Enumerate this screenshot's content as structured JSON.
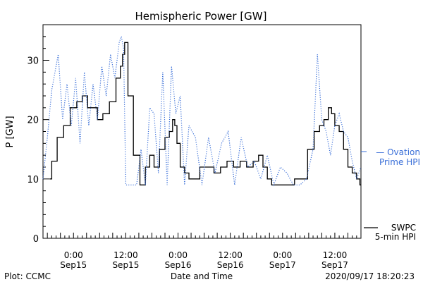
{
  "chart_data": {
    "type": "line",
    "title": "Hemispheric Power [GW]",
    "ylabel": "P [GW]",
    "xlabel": "Date and Time",
    "ylim": [
      0,
      36
    ],
    "yticks": [
      0,
      10,
      20,
      30
    ],
    "xlim": [
      "2020-09-14T17:00",
      "2020-09-17T18:00"
    ],
    "xticks": [
      {
        "t": "2020-09-15T00:00",
        "line1": "0:00",
        "line2": "Sep15"
      },
      {
        "t": "2020-09-15T12:00",
        "line1": "12:00",
        "line2": "Sep15"
      },
      {
        "t": "2020-09-16T00:00",
        "line1": "0:00",
        "line2": "Sep16"
      },
      {
        "t": "2020-09-16T12:00",
        "line1": "12:00",
        "line2": "Sep16"
      },
      {
        "t": "2020-09-17T00:00",
        "line1": "0:00",
        "line2": "Sep17"
      },
      {
        "t": "2020-09-17T12:00",
        "line1": "12:00",
        "line2": "Sep17"
      }
    ],
    "series": [
      {
        "name": "SWPC 5-min HPI",
        "color": "#000000",
        "style": "solid",
        "x": [
          "2020-09-14T18:30",
          "2020-09-14T19:30",
          "2020-09-14T21:00",
          "2020-09-14T22:30",
          "2020-09-15T00:00",
          "2020-09-15T01:30",
          "2020-09-15T02:30",
          "2020-09-15T04:00",
          "2020-09-15T05:00",
          "2020-09-15T06:00",
          "2020-09-15T07:30",
          "2020-09-15T09:00",
          "2020-09-15T10:30",
          "2020-09-15T11:00",
          "2020-09-15T11:30",
          "2020-09-15T12:00",
          "2020-09-15T13:00",
          "2020-09-15T14:30",
          "2020-09-15T16:00",
          "2020-09-15T17:00",
          "2020-09-15T18:00",
          "2020-09-15T19:00",
          "2020-09-15T20:30",
          "2020-09-15T21:30",
          "2020-09-15T22:30",
          "2020-09-15T23:00",
          "2020-09-15T23:30",
          "2020-09-16T00:00",
          "2020-09-16T01:00",
          "2020-09-16T02:00",
          "2020-09-16T03:00",
          "2020-09-16T04:00",
          "2020-09-16T06:00",
          "2020-09-16T07:30",
          "2020-09-16T09:00",
          "2020-09-16T10:30",
          "2020-09-16T12:00",
          "2020-09-16T13:30",
          "2020-09-16T15:00",
          "2020-09-16T16:30",
          "2020-09-16T18:00",
          "2020-09-16T19:00",
          "2020-09-16T20:00",
          "2020-09-16T21:00",
          "2020-09-16T22:00",
          "2020-09-17T00:00",
          "2020-09-17T02:00",
          "2020-09-17T03:30",
          "2020-09-17T05:00",
          "2020-09-17T06:30",
          "2020-09-17T08:00",
          "2020-09-17T09:00",
          "2020-09-17T10:00",
          "2020-09-17T11:00",
          "2020-09-17T11:30",
          "2020-09-17T12:30",
          "2020-09-17T13:30",
          "2020-09-17T14:30",
          "2020-09-17T15:30",
          "2020-09-17T16:30",
          "2020-09-17T17:30",
          "2020-09-17T18:00"
        ],
        "values": [
          10,
          13,
          17,
          19,
          22,
          23,
          24,
          22,
          22,
          20,
          21,
          23,
          27,
          29,
          31,
          33,
          24,
          14,
          9,
          12,
          14,
          12,
          15,
          17,
          18,
          20,
          19,
          16,
          12,
          11,
          10,
          10,
          12,
          12,
          11,
          12,
          13,
          12,
          13,
          12,
          13,
          14,
          12,
          10,
          9,
          9,
          9,
          10,
          10,
          15,
          18,
          19,
          20,
          22,
          21,
          19,
          18,
          15,
          12,
          11,
          10,
          9
        ]
      },
      {
        "name": "Ovation Prime HPI",
        "color": "#3a6fd8",
        "style": "dotted",
        "x": [
          "2020-09-14T17:00",
          "2020-09-14T18:00",
          "2020-09-14T19:00",
          "2020-09-14T20:30",
          "2020-09-14T21:30",
          "2020-09-14T22:30",
          "2020-09-14T23:30",
          "2020-09-15T00:30",
          "2020-09-15T01:30",
          "2020-09-15T02:30",
          "2020-09-15T03:30",
          "2020-09-15T04:30",
          "2020-09-15T05:30",
          "2020-09-15T06:30",
          "2020-09-15T07:30",
          "2020-09-15T08:30",
          "2020-09-15T09:30",
          "2020-09-15T10:30",
          "2020-09-15T11:00",
          "2020-09-15T11:30",
          "2020-09-15T12:00",
          "2020-09-15T12:30",
          "2020-09-15T13:30",
          "2020-09-15T14:30",
          "2020-09-15T15:30",
          "2020-09-15T16:30",
          "2020-09-15T17:30",
          "2020-09-15T18:30",
          "2020-09-15T19:30",
          "2020-09-15T20:30",
          "2020-09-15T21:30",
          "2020-09-15T22:30",
          "2020-09-15T23:30",
          "2020-09-16T00:30",
          "2020-09-16T01:30",
          "2020-09-16T02:30",
          "2020-09-16T04:00",
          "2020-09-16T05:30",
          "2020-09-16T07:00",
          "2020-09-16T08:30",
          "2020-09-16T10:00",
          "2020-09-16T11:30",
          "2020-09-16T13:00",
          "2020-09-16T14:30",
          "2020-09-16T16:00",
          "2020-09-16T17:30",
          "2020-09-16T19:00",
          "2020-09-16T20:30",
          "2020-09-16T22:00",
          "2020-09-16T23:30",
          "2020-09-17T01:00",
          "2020-09-17T02:30",
          "2020-09-17T04:00",
          "2020-09-17T05:30",
          "2020-09-17T07:00",
          "2020-09-17T08:00",
          "2020-09-17T09:00",
          "2020-09-17T10:00",
          "2020-09-17T11:00",
          "2020-09-17T12:00",
          "2020-09-17T13:00",
          "2020-09-17T14:00",
          "2020-09-17T15:00",
          "2020-09-17T16:00",
          "2020-09-17T17:00",
          "2020-09-17T18:00"
        ],
        "values": [
          10,
          17,
          25,
          31,
          20,
          26,
          19,
          27,
          16,
          28,
          19,
          26,
          20,
          29,
          24,
          31,
          27,
          33,
          34,
          32,
          9,
          9,
          9,
          9,
          15,
          9,
          22,
          21,
          11,
          28,
          9,
          29,
          21,
          24,
          9,
          19,
          17,
          9,
          17,
          11,
          16,
          18,
          9,
          17,
          12,
          13,
          10,
          14,
          9,
          12,
          11,
          9,
          9,
          10,
          15,
          31,
          20,
          18,
          14,
          19,
          21,
          18,
          17,
          13,
          10,
          12
        ]
      }
    ],
    "legend": {
      "placement": "right",
      "ovation_line1": "— Ovation",
      "ovation_line2": "Prime HPI",
      "swpc_line1": "SWPC",
      "swpc_line2": "5-min HPI"
    }
  },
  "footer": {
    "left": "Plot: CCMC",
    "right": "2020/09/17 18:20:23"
  }
}
